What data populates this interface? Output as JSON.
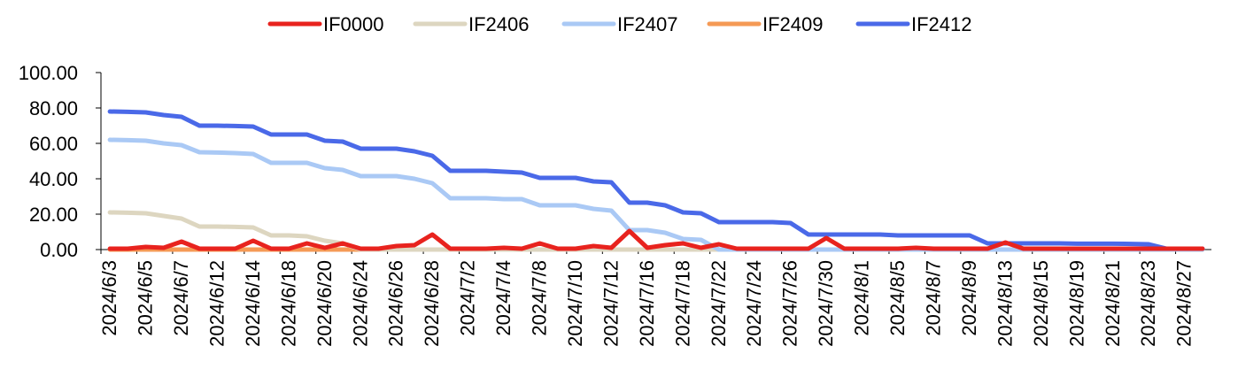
{
  "chart_data": {
    "type": "line",
    "title": "",
    "xlabel": "",
    "ylabel": "",
    "ylim": [
      0,
      100
    ],
    "yticks": [
      "0.00",
      "20.00",
      "40.00",
      "60.00",
      "80.00",
      "100.00"
    ],
    "legend_position": "top",
    "x": [
      "2024/6/3",
      "2024/6/4",
      "2024/6/5",
      "2024/6/6",
      "2024/6/7",
      "2024/6/11",
      "2024/6/12",
      "2024/6/13",
      "2024/6/14",
      "2024/6/17",
      "2024/6/18",
      "2024/6/19",
      "2024/6/20",
      "2024/6/21",
      "2024/6/24",
      "2024/6/25",
      "2024/6/26",
      "2024/6/27",
      "2024/6/28",
      "2024/7/1",
      "2024/7/2",
      "2024/7/3",
      "2024/7/4",
      "2024/7/5",
      "2024/7/8",
      "2024/7/9",
      "2024/7/10",
      "2024/7/11",
      "2024/7/12",
      "2024/7/15",
      "2024/7/16",
      "2024/7/17",
      "2024/7/18",
      "2024/7/19",
      "2024/7/22",
      "2024/7/23",
      "2024/7/24",
      "2024/7/25",
      "2024/7/26",
      "2024/7/29",
      "2024/7/30",
      "2024/7/31",
      "2024/8/1",
      "2024/8/2",
      "2024/8/5",
      "2024/8/6",
      "2024/8/7",
      "2024/8/8",
      "2024/8/9",
      "2024/8/12",
      "2024/8/13",
      "2024/8/14",
      "2024/8/15",
      "2024/8/16",
      "2024/8/19",
      "2024/8/20",
      "2024/8/21",
      "2024/8/22",
      "2024/8/23",
      "2024/8/26",
      "2024/8/27",
      "2024/8/28"
    ],
    "tick_labels": [
      "2024/6/3",
      "2024/6/5",
      "2024/6/7",
      "2024/6/12",
      "2024/6/14",
      "2024/6/18",
      "2024/6/20",
      "2024/6/24",
      "2024/6/26",
      "2024/6/28",
      "2024/7/2",
      "2024/7/4",
      "2024/7/8",
      "2024/7/10",
      "2024/7/12",
      "2024/7/16",
      "2024/7/18",
      "2024/7/22",
      "2024/7/24",
      "2024/7/26",
      "2024/7/30",
      "2024/8/1",
      "2024/8/5",
      "2024/8/7",
      "2024/8/9",
      "2024/8/13",
      "2024/8/15",
      "2024/8/19",
      "2024/8/21",
      "2024/8/23",
      "2024/8/27"
    ],
    "series": [
      {
        "name": "IF0000",
        "color": "#e8231e",
        "values": [
          0.5,
          0.5,
          1.5,
          1,
          4.5,
          0.5,
          0.5,
          0.5,
          5,
          0.5,
          0.5,
          3.5,
          1,
          3.5,
          0.5,
          0.5,
          2,
          2.5,
          8.5,
          0.5,
          0.5,
          0.5,
          1,
          0.5,
          3.5,
          0.5,
          0.5,
          2,
          1,
          10.5,
          1,
          2.5,
          3.5,
          1,
          3,
          0.5,
          0.5,
          0.5,
          0.5,
          0.5,
          6.5,
          0.5,
          0.5,
          0.5,
          0.5,
          1,
          0.5,
          0.5,
          0.5,
          0.5,
          4,
          0.5,
          0.5,
          0.5,
          0.5,
          0.5,
          0.5,
          0.5,
          0.5,
          0.5,
          0.5,
          0.5
        ]
      },
      {
        "name": "IF2406",
        "color": "#ddd6c0",
        "values": [
          21,
          20.8,
          20.5,
          19,
          17.5,
          13,
          13,
          12.8,
          12.5,
          8,
          8,
          7.5,
          5,
          3.5,
          0,
          0,
          0,
          0,
          0,
          0,
          0,
          0,
          0,
          0,
          0,
          0,
          0,
          0,
          0,
          0,
          0,
          0,
          0,
          0,
          0,
          0,
          0,
          0,
          0,
          0,
          0,
          0,
          0,
          0,
          0,
          0,
          0,
          0,
          0,
          0,
          0,
          0,
          0,
          0,
          0,
          0,
          0,
          0,
          0,
          0,
          0,
          0
        ]
      },
      {
        "name": "IF2407",
        "color": "#aac9f5",
        "values": [
          62,
          61.8,
          61.5,
          60,
          59,
          55,
          54.8,
          54.5,
          54,
          49,
          49,
          49,
          46,
          45,
          41.5,
          41.5,
          41.5,
          40,
          37.5,
          29,
          29,
          29,
          28.5,
          28.5,
          25,
          25,
          25,
          23,
          22,
          11,
          11,
          9.5,
          6,
          5.5,
          0,
          0,
          0,
          0,
          0,
          0,
          0,
          0,
          0,
          0,
          0,
          0,
          0,
          0,
          0,
          0,
          0,
          0,
          0,
          0,
          0,
          0,
          0,
          0,
          0,
          0,
          0,
          0
        ]
      },
      {
        "name": "IF2409",
        "color": "#f59a55",
        "values": [
          0,
          0,
          0,
          0,
          0,
          0,
          0,
          0,
          0,
          0,
          0,
          0,
          0,
          0,
          0,
          0,
          0,
          0,
          0,
          0,
          0,
          0,
          0,
          0,
          0,
          0,
          0,
          0,
          0,
          0,
          0,
          0,
          0,
          0,
          0,
          0,
          0,
          0,
          0,
          0,
          0,
          0,
          0,
          0,
          0,
          0,
          0,
          0,
          0,
          0,
          0,
          0,
          0,
          0,
          0,
          0,
          0,
          0,
          0,
          0,
          0,
          0
        ]
      },
      {
        "name": "IF2412",
        "color": "#4a69e8",
        "values": [
          78,
          77.8,
          77.5,
          76,
          75,
          70,
          70,
          69.8,
          69.5,
          65,
          65,
          65,
          61.5,
          61,
          57,
          57,
          57,
          55.5,
          53,
          44.5,
          44.5,
          44.5,
          44,
          43.5,
          40.5,
          40.5,
          40.5,
          38.5,
          38,
          26.5,
          26.5,
          25,
          21,
          20.5,
          15.5,
          15.5,
          15.5,
          15.5,
          15,
          8.5,
          8.5,
          8.5,
          8.5,
          8.5,
          8,
          8,
          8,
          8,
          8,
          3.5,
          3.5,
          3.5,
          3.5,
          3.5,
          3.3,
          3.3,
          3.3,
          3.2,
          3,
          0.5,
          0.5,
          0.5
        ]
      }
    ]
  }
}
